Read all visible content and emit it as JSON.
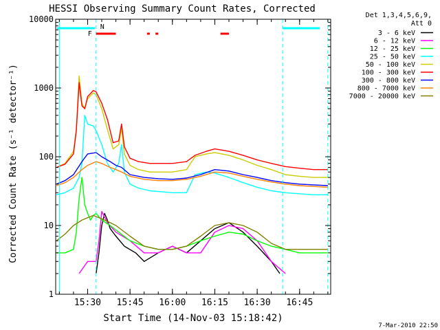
{
  "chart_data": {
    "type": "line",
    "title": "HESSI Observing Summary Count Rates, Corrected",
    "xlabel": "Start Time (14-Nov-03 15:18:42)",
    "ylabel": "Corrected Count Rate (s⁻¹ detector⁻¹)",
    "yscale": "log",
    "ylim": [
      1,
      10000
    ],
    "xlim": [
      "15:18:42",
      "16:56:00"
    ],
    "x_ticks": [
      "15:30",
      "15:45",
      "16:00",
      "16:15",
      "16:30",
      "16:45"
    ],
    "y_ticks": [
      "1",
      "10",
      "100",
      "1000",
      "10000"
    ],
    "footer": "7-Mar-2010 22:50",
    "legend": {
      "header": [
        "Det 1,3,4,5,6,9,",
        "Att 0"
      ],
      "placement": "top-right outside",
      "entries": [
        {
          "label": "3 - 6 keV",
          "color": "#000000"
        },
        {
          "label": "6 - 12 keV",
          "color": "#ff00ff"
        },
        {
          "label": "12 - 25 keV",
          "color": "#00ff00"
        },
        {
          "label": "25 - 50 keV",
          "color": "#00ffff"
        },
        {
          "label": "50 - 100 keV",
          "color": "#cccc00"
        },
        {
          "label": "100 - 300 keV",
          "color": "#ff0000"
        },
        {
          "label": "300 - 800 keV",
          "color": "#0000ff"
        },
        {
          "label": "800 - 7000 keV",
          "color": "#ff8000"
        },
        {
          "label": "7000 - 20000 keV",
          "color": "#808000"
        }
      ]
    },
    "annotations": {
      "night_markers": [
        "15:20",
        "16:39",
        "16:55"
      ],
      "night_color": "#00ffff",
      "F_label": "F",
      "N_label": "N",
      "saa_mark": "15:33",
      "flare_segments": [
        [
          "15:33",
          "15:40"
        ],
        [
          "15:51",
          "15:52"
        ],
        [
          "15:54",
          "15:55"
        ],
        [
          "16:17",
          "16:20"
        ]
      ],
      "flare_color": "#ff0000"
    },
    "series": [
      {
        "name": "3 - 6 keV",
        "color": "#000000",
        "x": [
          "15:33",
          "15:34",
          "15:35",
          "15:36",
          "15:37",
          "15:38",
          "15:40",
          "15:43",
          "15:47",
          "15:50",
          "15:55",
          "16:00",
          "16:05",
          "16:10",
          "16:15",
          "16:20",
          "16:25",
          "16:30",
          "16:35",
          "16:38"
        ],
        "y": [
          2,
          4,
          10,
          15,
          12,
          9,
          7,
          5,
          4,
          3,
          4,
          5,
          4,
          6,
          9,
          11,
          8,
          5,
          3,
          2
        ]
      },
      {
        "name": "6 - 12 keV",
        "color": "#ff00ff",
        "x": [
          "15:27",
          "15:30",
          "15:33",
          "15:34",
          "15:35",
          "15:37",
          "15:40",
          "15:45",
          "15:50",
          "15:55",
          "16:00",
          "16:05",
          "16:10",
          "16:15",
          "16:20",
          "16:25",
          "16:30",
          "16:35",
          "16:40"
        ],
        "y": [
          2,
          3,
          3,
          6,
          16,
          11,
          8,
          6,
          4,
          4,
          5,
          4,
          4,
          8,
          10,
          9,
          6,
          3,
          2
        ]
      },
      {
        "name": "12 - 25 keV",
        "color": "#00ff00",
        "x": [
          "15:19",
          "15:22",
          "15:25",
          "15:26",
          "15:27",
          "15:28",
          "15:29",
          "15:30",
          "15:31",
          "15:32",
          "15:33",
          "15:35",
          "15:38",
          "15:41",
          "15:45",
          "15:50",
          "15:55",
          "16:00",
          "16:05",
          "16:10",
          "16:15",
          "16:20",
          "16:25",
          "16:30",
          "16:35",
          "16:40",
          "16:45",
          "16:50",
          "16:55"
        ],
        "y": [
          4,
          4,
          4.5,
          8,
          25,
          50,
          20,
          15,
          12,
          14,
          15,
          12,
          10,
          8,
          6,
          5,
          4.5,
          4.5,
          5,
          6,
          7,
          8,
          7.5,
          6,
          5,
          4.5,
          4,
          4,
          4
        ]
      },
      {
        "name": "25 - 50 keV",
        "color": "#00ffff",
        "x": [
          "15:19",
          "15:22",
          "15:25",
          "15:27",
          "15:28",
          "15:29",
          "15:30",
          "15:32",
          "15:33",
          "15:35",
          "15:37",
          "15:39",
          "15:41",
          "15:42",
          "15:43",
          "15:45",
          "15:48",
          "15:52",
          "16:00",
          "16:05",
          "16:08",
          "16:12",
          "16:15",
          "16:20",
          "16:25",
          "16:30",
          "16:35",
          "16:40",
          "16:45",
          "16:50",
          "16:55"
        ],
        "y": [
          28,
          30,
          35,
          50,
          80,
          400,
          300,
          280,
          240,
          150,
          80,
          60,
          80,
          150,
          60,
          40,
          35,
          32,
          30,
          30,
          55,
          60,
          58,
          50,
          42,
          36,
          32,
          30,
          29,
          28,
          28
        ]
      },
      {
        "name": "50 - 100 keV",
        "color": "#cccc00",
        "x": [
          "15:19",
          "15:22",
          "15:25",
          "15:26",
          "15:27",
          "15:28",
          "15:29",
          "15:30",
          "15:32",
          "15:33",
          "15:35",
          "15:37",
          "15:39",
          "15:41",
          "15:42",
          "15:43",
          "15:45",
          "15:48",
          "15:52",
          "16:00",
          "16:05",
          "16:08",
          "16:12",
          "16:15",
          "16:20",
          "16:25",
          "16:30",
          "16:35",
          "16:40",
          "16:45",
          "16:50",
          "16:55"
        ],
        "y": [
          70,
          80,
          120,
          250,
          1500,
          600,
          500,
          700,
          850,
          800,
          500,
          250,
          130,
          150,
          260,
          110,
          75,
          65,
          60,
          60,
          65,
          100,
          110,
          115,
          105,
          90,
          75,
          65,
          55,
          52,
          50,
          50
        ]
      },
      {
        "name": "100 - 300 keV",
        "color": "#ff0000",
        "x": [
          "15:19",
          "15:22",
          "15:25",
          "15:26",
          "15:27",
          "15:28",
          "15:29",
          "15:30",
          "15:32",
          "15:33",
          "15:35",
          "15:37",
          "15:39",
          "15:41",
          "15:42",
          "15:43",
          "15:45",
          "15:48",
          "15:52",
          "16:00",
          "16:05",
          "16:08",
          "16:12",
          "16:15",
          "16:20",
          "16:25",
          "16:30",
          "16:35",
          "16:40",
          "16:45",
          "16:50",
          "16:55"
        ],
        "y": [
          70,
          78,
          110,
          240,
          1200,
          550,
          500,
          750,
          920,
          880,
          600,
          350,
          160,
          170,
          300,
          140,
          95,
          85,
          80,
          80,
          85,
          105,
          120,
          130,
          120,
          105,
          90,
          80,
          72,
          68,
          65,
          65
        ]
      },
      {
        "name": "300 - 800 keV",
        "color": "#0000ff",
        "x": [
          "15:19",
          "15:22",
          "15:25",
          "15:28",
          "15:30",
          "15:33",
          "15:35",
          "15:38",
          "15:40",
          "15:42",
          "15:45",
          "15:50",
          "15:55",
          "16:00",
          "16:05",
          "16:10",
          "16:15",
          "16:20",
          "16:25",
          "16:30",
          "16:35",
          "16:40",
          "16:45",
          "16:50",
          "16:55"
        ],
        "y": [
          40,
          45,
          55,
          85,
          110,
          115,
          100,
          85,
          75,
          70,
          55,
          50,
          48,
          47,
          49,
          55,
          65,
          62,
          55,
          50,
          45,
          42,
          40,
          39,
          38
        ]
      },
      {
        "name": "800 - 7000 keV",
        "color": "#ff8000",
        "x": [
          "15:19",
          "15:22",
          "15:25",
          "15:28",
          "15:30",
          "15:33",
          "15:35",
          "15:38",
          "15:40",
          "15:42",
          "15:45",
          "15:50",
          "15:55",
          "16:00",
          "16:05",
          "16:10",
          "16:15",
          "16:20",
          "16:25",
          "16:30",
          "16:35",
          "16:40",
          "16:45",
          "16:50",
          "16:55"
        ],
        "y": [
          38,
          42,
          50,
          65,
          75,
          85,
          80,
          70,
          65,
          60,
          52,
          47,
          45,
          45,
          47,
          52,
          60,
          58,
          52,
          47,
          43,
          40,
          38,
          37,
          36
        ]
      },
      {
        "name": "7000 - 20000 keV",
        "color": "#808000",
        "x": [
          "15:19",
          "15:22",
          "15:25",
          "15:28",
          "15:30",
          "15:32",
          "15:34",
          "15:36",
          "15:38",
          "15:40",
          "15:45",
          "15:50",
          "15:55",
          "16:00",
          "16:05",
          "16:10",
          "16:15",
          "16:20",
          "16:25",
          "16:30",
          "16:35",
          "16:40",
          "16:45",
          "16:50",
          "16:55"
        ],
        "y": [
          6,
          7.5,
          10,
          12,
          13,
          14,
          13,
          12,
          11,
          10,
          7,
          5,
          4.5,
          4.5,
          5,
          7,
          10,
          11,
          10,
          8,
          5.5,
          4.5,
          4.5,
          4.5,
          4.5
        ]
      }
    ]
  }
}
